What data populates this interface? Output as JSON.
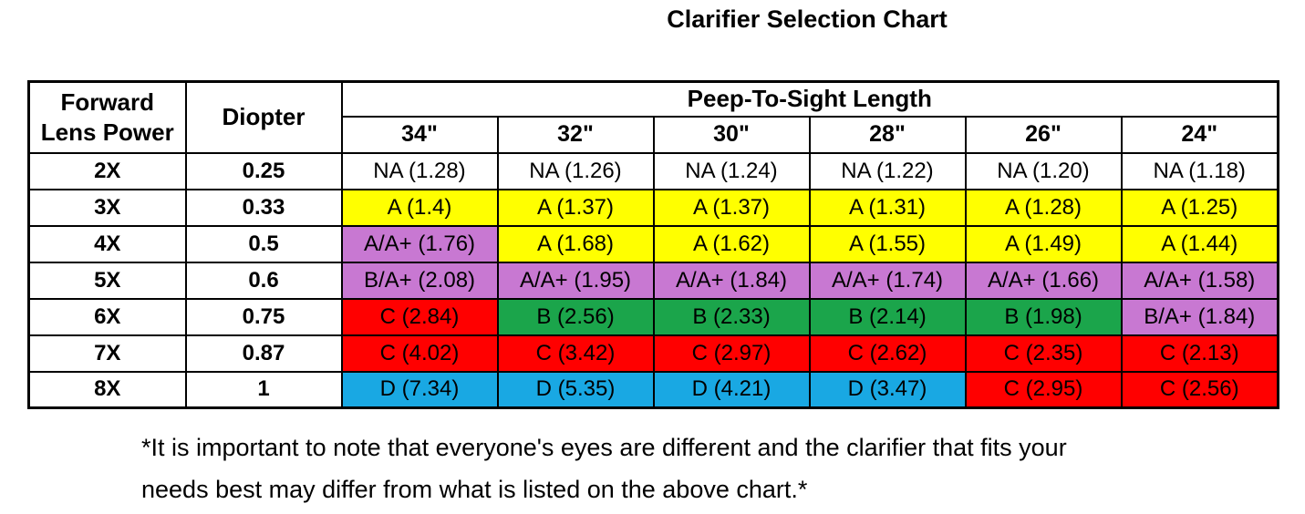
{
  "title": "Clarifier Selection Chart",
  "colors": {
    "white": "#FFFFFF",
    "yellow": "#FFFF00",
    "purple": "#C878D2",
    "green": "#1BA54B",
    "red": "#FF0000",
    "blue": "#19A8E3"
  },
  "table": {
    "header": {
      "col1_line1": "Forward",
      "col1_line2": "Lens Power",
      "col2": "Diopter",
      "group": "Peep-To-Sight Length",
      "lengths": [
        "34\"",
        "32\"",
        "30\"",
        "28\"",
        "26\"",
        "24\""
      ]
    },
    "rows": [
      {
        "power": "2X",
        "diopter": "0.25",
        "cells": [
          {
            "text": "NA (1.28)",
            "color": "white"
          },
          {
            "text": "NA (1.26)",
            "color": "white"
          },
          {
            "text": "NA (1.24)",
            "color": "white"
          },
          {
            "text": "NA (1.22)",
            "color": "white"
          },
          {
            "text": "NA (1.20)",
            "color": "white"
          },
          {
            "text": "NA (1.18)",
            "color": "white"
          }
        ]
      },
      {
        "power": "3X",
        "diopter": "0.33",
        "cells": [
          {
            "text": "A (1.4)",
            "color": "yellow"
          },
          {
            "text": "A (1.37)",
            "color": "yellow"
          },
          {
            "text": "A (1.37)",
            "color": "yellow"
          },
          {
            "text": "A (1.31)",
            "color": "yellow"
          },
          {
            "text": "A (1.28)",
            "color": "yellow"
          },
          {
            "text": "A (1.25)",
            "color": "yellow"
          }
        ]
      },
      {
        "power": "4X",
        "diopter": "0.5",
        "cells": [
          {
            "text": "A/A+ (1.76)",
            "color": "purple"
          },
          {
            "text": "A (1.68)",
            "color": "yellow"
          },
          {
            "text": "A (1.62)",
            "color": "yellow"
          },
          {
            "text": "A (1.55)",
            "color": "yellow"
          },
          {
            "text": "A (1.49)",
            "color": "yellow"
          },
          {
            "text": "A (1.44)",
            "color": "yellow"
          }
        ]
      },
      {
        "power": "5X",
        "diopter": "0.6",
        "cells": [
          {
            "text": "B/A+ (2.08)",
            "color": "purple"
          },
          {
            "text": "A/A+ (1.95)",
            "color": "purple"
          },
          {
            "text": "A/A+ (1.84)",
            "color": "purple"
          },
          {
            "text": "A/A+ (1.74)",
            "color": "purple"
          },
          {
            "text": "A/A+ (1.66)",
            "color": "purple"
          },
          {
            "text": "A/A+ (1.58)",
            "color": "purple"
          }
        ]
      },
      {
        "power": "6X",
        "diopter": "0.75",
        "cells": [
          {
            "text": "C (2.84)",
            "color": "red"
          },
          {
            "text": "B (2.56)",
            "color": "green"
          },
          {
            "text": "B (2.33)",
            "color": "green"
          },
          {
            "text": "B (2.14)",
            "color": "green"
          },
          {
            "text": "B (1.98)",
            "color": "green"
          },
          {
            "text": "B/A+ (1.84)",
            "color": "purple"
          }
        ]
      },
      {
        "power": "7X",
        "diopter": "0.87",
        "cells": [
          {
            "text": "C (4.02)",
            "color": "red"
          },
          {
            "text": "C (3.42)",
            "color": "red"
          },
          {
            "text": "C (2.97)",
            "color": "red"
          },
          {
            "text": "C (2.62)",
            "color": "red"
          },
          {
            "text": "C (2.35)",
            "color": "red"
          },
          {
            "text": "C (2.13)",
            "color": "red"
          }
        ]
      },
      {
        "power": "8X",
        "diopter": "1",
        "cells": [
          {
            "text": "D (7.34)",
            "color": "blue"
          },
          {
            "text": "D (5.35)",
            "color": "blue"
          },
          {
            "text": "D (4.21)",
            "color": "blue"
          },
          {
            "text": "D (3.47)",
            "color": "blue"
          },
          {
            "text": "C (2.95)",
            "color": "red"
          },
          {
            "text": "C (2.56)",
            "color": "red"
          }
        ]
      }
    ]
  },
  "footnote": {
    "line1": "*It is important to note that everyone's eyes are different and the clarifier that fits your",
    "line2": "needs best may differ from what is listed on the above chart.*"
  }
}
